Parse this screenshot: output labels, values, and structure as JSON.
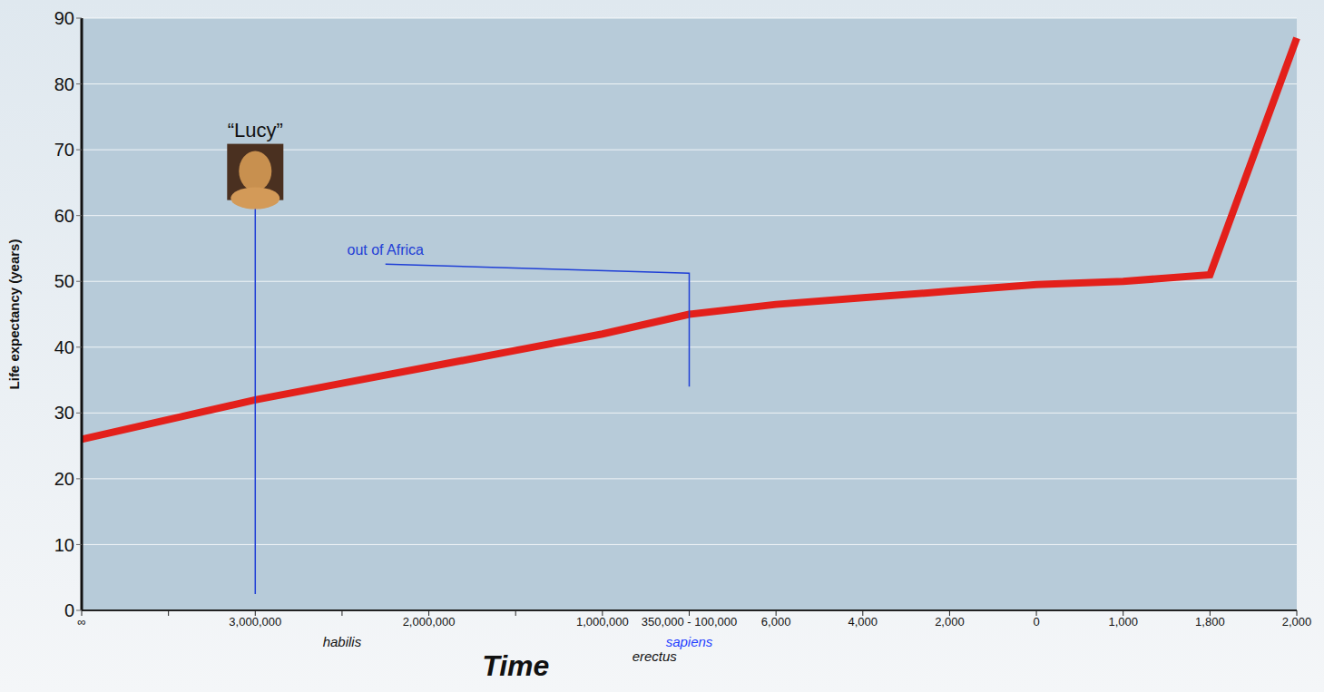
{
  "chart_data": {
    "type": "line",
    "ylabel": "Life expectancy (years)",
    "xlabel": "Time",
    "categories": [
      "∞",
      null,
      "3,000,000",
      null,
      "2,000,000",
      null,
      "1,000,000",
      "350,000 - 100,000",
      "6,000",
      "4,000",
      "2,000",
      "0",
      "1,000",
      "1,800",
      "2,000"
    ],
    "values": [
      26,
      29,
      32,
      34.5,
      37,
      39.5,
      42,
      45,
      46.5,
      47.5,
      48.5,
      49.5,
      50,
      51,
      87
    ],
    "color": "#e3201b",
    "ylim": [
      0,
      90
    ],
    "yticks": [
      0,
      10,
      20,
      30,
      40,
      50,
      60,
      70,
      80,
      90
    ],
    "grid": true,
    "annotations": [
      {
        "text": "“Lucy”",
        "at": 2,
        "y": 72,
        "color": "#111111"
      },
      {
        "text": "out of Africa",
        "at": 3.5,
        "y": 54,
        "color": "#1f3fd6"
      },
      {
        "text": "habilis",
        "at": 3,
        "color": "#111111"
      },
      {
        "text": "erectus",
        "at": 6.6,
        "color": "#111111"
      },
      {
        "text": "sapiens",
        "at": 7,
        "color": "#1f3fff"
      }
    ]
  }
}
